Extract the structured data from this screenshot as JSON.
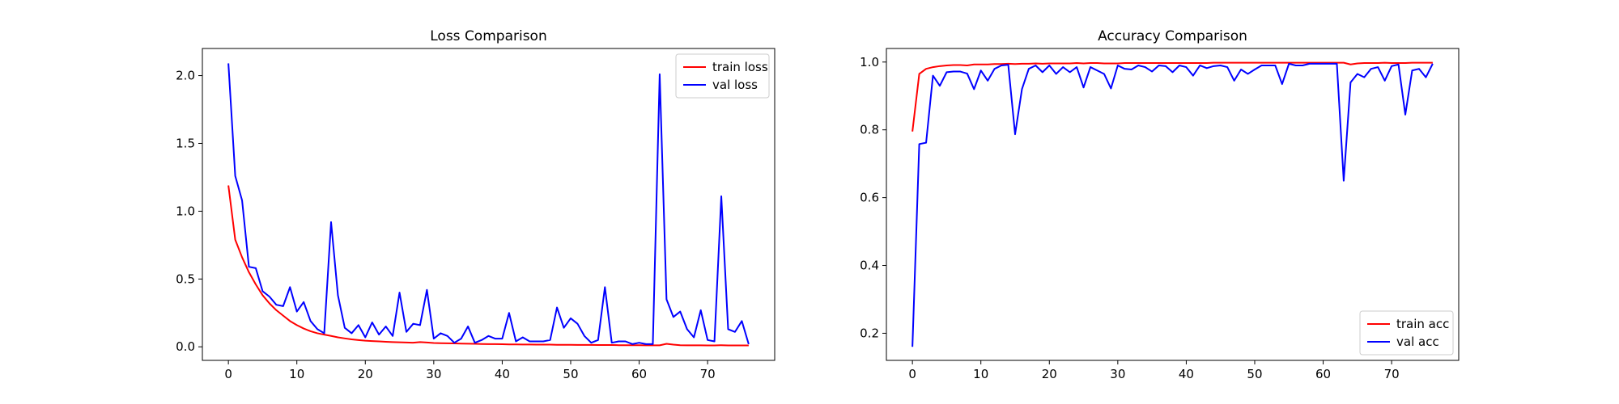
{
  "chart_data": [
    {
      "type": "line",
      "title": "Loss Comparison",
      "xlabel": "",
      "ylabel": "",
      "xlim": [
        -3.8,
        79.8
      ],
      "ylim": [
        -0.1,
        2.2
      ],
      "xticks": [
        0,
        10,
        20,
        30,
        40,
        50,
        60,
        70
      ],
      "yticks": [
        0.0,
        0.5,
        1.0,
        1.5,
        2.0
      ],
      "ytick_labels": [
        "0.0",
        "0.5",
        "1.0",
        "1.5",
        "2.0"
      ],
      "grid": false,
      "legend_position": "top-right",
      "series": [
        {
          "name": "train loss",
          "color": "#ff0000",
          "x": [
            0,
            1,
            2,
            3,
            4,
            5,
            6,
            7,
            8,
            9,
            10,
            11,
            12,
            13,
            14,
            15,
            16,
            17,
            18,
            19,
            20,
            21,
            22,
            23,
            24,
            25,
            26,
            27,
            28,
            29,
            30,
            31,
            32,
            33,
            34,
            35,
            36,
            37,
            38,
            39,
            40,
            41,
            42,
            43,
            44,
            45,
            46,
            47,
            48,
            49,
            50,
            51,
            52,
            53,
            54,
            55,
            56,
            57,
            58,
            59,
            60,
            61,
            62,
            63,
            64,
            65,
            66,
            67,
            68,
            69,
            70,
            71,
            72,
            73,
            74,
            75,
            76
          ],
          "y": [
            1.19,
            0.79,
            0.66,
            0.55,
            0.46,
            0.38,
            0.32,
            0.27,
            0.23,
            0.19,
            0.16,
            0.135,
            0.115,
            0.1,
            0.09,
            0.08,
            0.07,
            0.062,
            0.055,
            0.05,
            0.045,
            0.042,
            0.04,
            0.037,
            0.035,
            0.033,
            0.032,
            0.03,
            0.035,
            0.032,
            0.028,
            0.027,
            0.026,
            0.025,
            0.024,
            0.023,
            0.022,
            0.021,
            0.02,
            0.02,
            0.019,
            0.018,
            0.018,
            0.017,
            0.017,
            0.016,
            0.016,
            0.016,
            0.015,
            0.015,
            0.015,
            0.014,
            0.014,
            0.014,
            0.013,
            0.013,
            0.013,
            0.012,
            0.012,
            0.012,
            0.012,
            0.011,
            0.011,
            0.011,
            0.022,
            0.016,
            0.012,
            0.011,
            0.011,
            0.011,
            0.01,
            0.01,
            0.012,
            0.01,
            0.01,
            0.01,
            0.01
          ]
        },
        {
          "name": "val loss",
          "color": "#0000ff",
          "x": [
            0,
            1,
            2,
            3,
            4,
            5,
            6,
            7,
            8,
            9,
            10,
            11,
            12,
            13,
            14,
            15,
            16,
            17,
            18,
            19,
            20,
            21,
            22,
            23,
            24,
            25,
            26,
            27,
            28,
            29,
            30,
            31,
            32,
            33,
            34,
            35,
            36,
            37,
            38,
            39,
            40,
            41,
            42,
            43,
            44,
            45,
            46,
            47,
            48,
            49,
            50,
            51,
            52,
            53,
            54,
            55,
            56,
            57,
            58,
            59,
            60,
            61,
            62,
            63,
            64,
            65,
            66,
            67,
            68,
            69,
            70,
            71,
            72,
            73,
            74,
            75,
            76
          ],
          "y": [
            2.09,
            1.26,
            1.08,
            0.59,
            0.58,
            0.41,
            0.37,
            0.31,
            0.3,
            0.44,
            0.26,
            0.33,
            0.19,
            0.13,
            0.1,
            0.92,
            0.38,
            0.14,
            0.1,
            0.16,
            0.07,
            0.18,
            0.09,
            0.15,
            0.08,
            0.4,
            0.11,
            0.17,
            0.16,
            0.42,
            0.06,
            0.1,
            0.08,
            0.03,
            0.06,
            0.15,
            0.03,
            0.05,
            0.08,
            0.06,
            0.06,
            0.25,
            0.04,
            0.07,
            0.04,
            0.04,
            0.04,
            0.05,
            0.29,
            0.14,
            0.21,
            0.17,
            0.08,
            0.03,
            0.05,
            0.44,
            0.03,
            0.04,
            0.04,
            0.02,
            0.03,
            0.02,
            0.02,
            2.01,
            0.35,
            0.22,
            0.26,
            0.13,
            0.07,
            0.27,
            0.05,
            0.04,
            1.11,
            0.13,
            0.11,
            0.19,
            0.02
          ]
        }
      ]
    },
    {
      "type": "line",
      "title": "Accuracy Comparison",
      "xlabel": "",
      "ylabel": "",
      "xlim": [
        -3.8,
        79.8
      ],
      "ylim": [
        0.12,
        1.04
      ],
      "xticks": [
        0,
        10,
        20,
        30,
        40,
        50,
        60,
        70
      ],
      "yticks": [
        0.2,
        0.4,
        0.6,
        0.8,
        1.0
      ],
      "ytick_labels": [
        "0.2",
        "0.4",
        "0.6",
        "0.8",
        "1.0"
      ],
      "grid": false,
      "legend_position": "bottom-right",
      "series": [
        {
          "name": "train acc",
          "color": "#ff0000",
          "x": [
            0,
            1,
            2,
            3,
            4,
            5,
            6,
            7,
            8,
            9,
            10,
            11,
            12,
            13,
            14,
            15,
            16,
            17,
            18,
            19,
            20,
            21,
            22,
            23,
            24,
            25,
            26,
            27,
            28,
            29,
            30,
            31,
            32,
            33,
            34,
            35,
            36,
            37,
            38,
            39,
            40,
            41,
            42,
            43,
            44,
            45,
            46,
            47,
            48,
            49,
            50,
            51,
            52,
            53,
            54,
            55,
            56,
            57,
            58,
            59,
            60,
            61,
            62,
            63,
            64,
            65,
            66,
            67,
            68,
            69,
            70,
            71,
            72,
            73,
            74,
            75,
            76
          ],
          "y": [
            0.795,
            0.965,
            0.98,
            0.985,
            0.988,
            0.99,
            0.991,
            0.991,
            0.99,
            0.993,
            0.993,
            0.993,
            0.994,
            0.994,
            0.995,
            0.994,
            0.995,
            0.995,
            0.996,
            0.995,
            0.996,
            0.996,
            0.996,
            0.996,
            0.997,
            0.996,
            0.997,
            0.997,
            0.996,
            0.996,
            0.996,
            0.997,
            0.997,
            0.997,
            0.997,
            0.997,
            0.997,
            0.997,
            0.997,
            0.997,
            0.997,
            0.997,
            0.997,
            0.997,
            0.998,
            0.998,
            0.998,
            0.998,
            0.998,
            0.998,
            0.998,
            0.998,
            0.998,
            0.998,
            0.998,
            0.998,
            0.998,
            0.998,
            0.998,
            0.998,
            0.998,
            0.998,
            0.998,
            0.998,
            0.993,
            0.996,
            0.997,
            0.997,
            0.997,
            0.998,
            0.997,
            0.997,
            0.997,
            0.998,
            0.998,
            0.998,
            0.998
          ]
        },
        {
          "name": "val acc",
          "color": "#0000ff",
          "x": [
            0,
            1,
            2,
            3,
            4,
            5,
            6,
            7,
            8,
            9,
            10,
            11,
            12,
            13,
            14,
            15,
            16,
            17,
            18,
            19,
            20,
            21,
            22,
            23,
            24,
            25,
            26,
            27,
            28,
            29,
            30,
            31,
            32,
            33,
            34,
            35,
            36,
            37,
            38,
            39,
            40,
            41,
            42,
            43,
            44,
            45,
            46,
            47,
            48,
            49,
            50,
            51,
            52,
            53,
            54,
            55,
            56,
            57,
            58,
            59,
            60,
            61,
            62,
            63,
            64,
            65,
            66,
            67,
            68,
            69,
            70,
            71,
            72,
            73,
            74,
            75,
            76
          ],
          "y": [
            0.16,
            0.758,
            0.762,
            0.96,
            0.93,
            0.97,
            0.972,
            0.972,
            0.966,
            0.92,
            0.975,
            0.945,
            0.98,
            0.99,
            0.992,
            0.787,
            0.92,
            0.98,
            0.99,
            0.97,
            0.99,
            0.965,
            0.985,
            0.97,
            0.985,
            0.925,
            0.985,
            0.975,
            0.965,
            0.922,
            0.99,
            0.98,
            0.978,
            0.99,
            0.985,
            0.972,
            0.99,
            0.988,
            0.97,
            0.99,
            0.985,
            0.96,
            0.99,
            0.982,
            0.988,
            0.99,
            0.985,
            0.945,
            0.978,
            0.965,
            0.978,
            0.99,
            0.99,
            0.99,
            0.935,
            0.995,
            0.99,
            0.99,
            0.995,
            0.995,
            0.995,
            0.995,
            0.995,
            0.65,
            0.94,
            0.965,
            0.955,
            0.98,
            0.985,
            0.945,
            0.988,
            0.993,
            0.845,
            0.975,
            0.98,
            0.955,
            0.995
          ]
        }
      ]
    }
  ]
}
